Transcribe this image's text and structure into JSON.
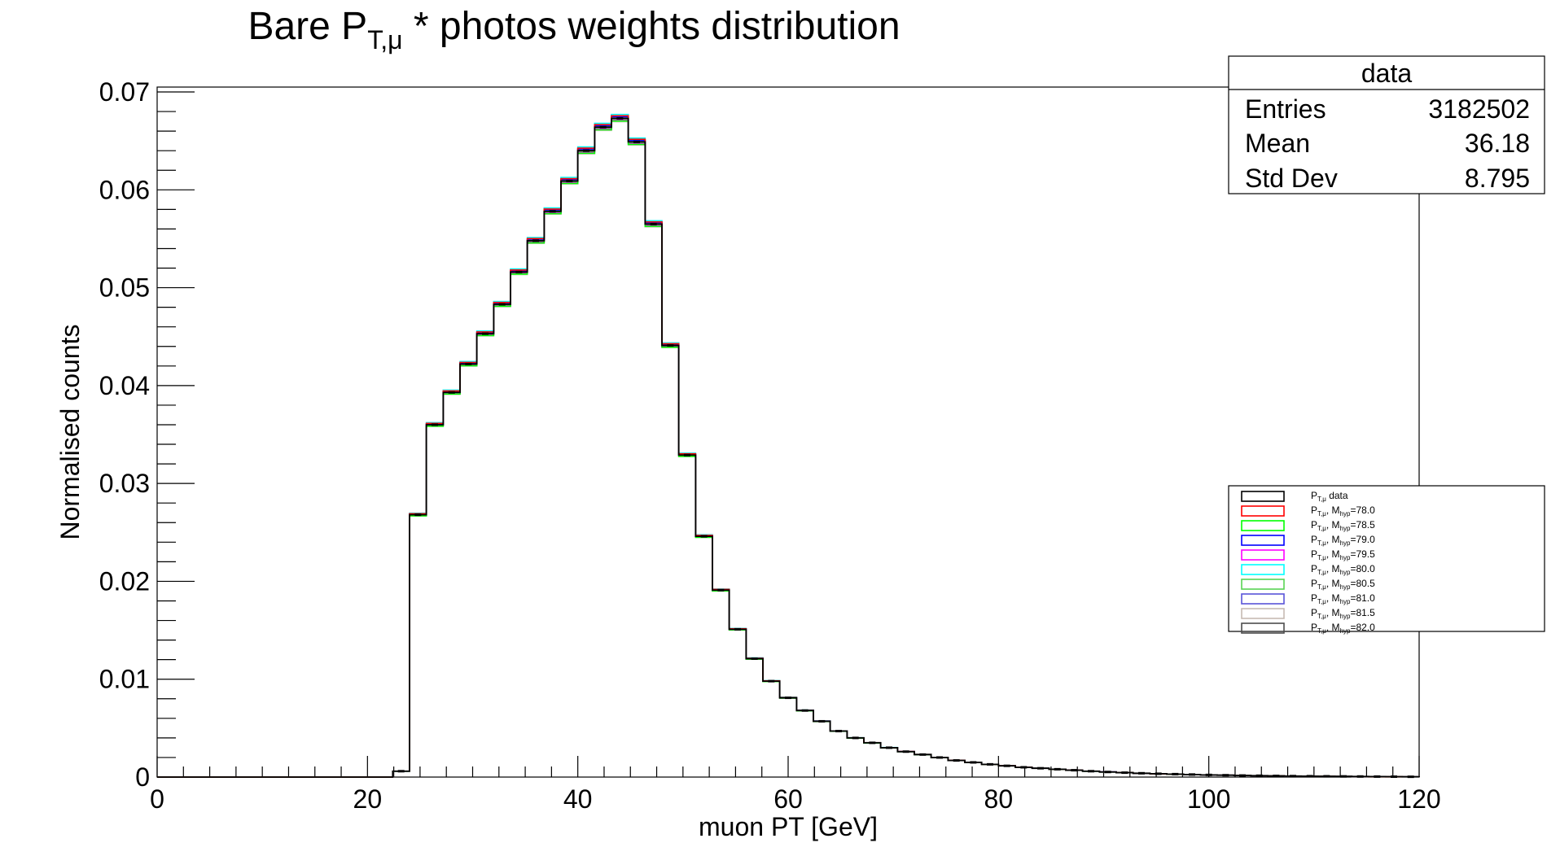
{
  "chart_data": {
    "type": "histogram",
    "title": {
      "prefix": "Bare P",
      "sub": "T,μ",
      "suffix": " * photos weights distribution"
    },
    "xlabel": "muon PT [GeV]",
    "ylabel": "Normalised counts",
    "xlim": [
      0,
      120
    ],
    "ylim": [
      0,
      0.0705
    ],
    "x_ticks": [
      0,
      20,
      40,
      60,
      80,
      100,
      120
    ],
    "x_tick_labels": [
      "0",
      "20",
      "40",
      "60",
      "80",
      "100",
      "120"
    ],
    "y_ticks": [
      0,
      0.01,
      0.02,
      0.03,
      0.04,
      0.05,
      0.06,
      0.07
    ],
    "y_tick_labels": [
      "0",
      "0.01",
      "0.02",
      "0.03",
      "0.04",
      "0.05",
      "0.06",
      "0.07"
    ],
    "bin_width": 1.6,
    "bin_start": 0,
    "values": [
      0,
      0,
      0,
      0,
      0,
      0,
      0,
      0,
      0,
      0,
      0,
      0,
      0,
      0,
      0.0006,
      0.0268,
      0.036,
      0.0393,
      0.0422,
      0.0453,
      0.0483,
      0.0516,
      0.0548,
      0.0578,
      0.0609,
      0.064,
      0.0664,
      0.0673,
      0.0649,
      0.0565,
      0.0441,
      0.0329,
      0.0246,
      0.0191,
      0.0151,
      0.0121,
      0.0098,
      0.0081,
      0.0068,
      0.0057,
      0.0047,
      0.004,
      0.0035,
      0.003,
      0.0026,
      0.0023,
      0.002,
      0.0017,
      0.0015,
      0.0013,
      0.00115,
      0.001,
      0.0009,
      0.0008,
      0.0007,
      0.0006,
      0.00052,
      0.00045,
      0.00039,
      0.00034,
      0.0003,
      0.00026,
      0.00022,
      0.00019,
      0.00016,
      0.00014,
      0.00012,
      0.0001,
      9e-05,
      8e-05,
      7e-05,
      6e-05,
      5e-05,
      4e-05,
      3e-05
    ],
    "stats": {
      "name": "data",
      "rows": [
        {
          "label": "Entries",
          "value": "3182502"
        },
        {
          "label": "Mean",
          "value": "36.18"
        },
        {
          "label": "Std Dev",
          "value": "8.795"
        }
      ]
    },
    "legend": {
      "placement": "right",
      "entries": [
        {
          "base": "P",
          "sub": "T,μ",
          "mid": "",
          "msub": "",
          "suffix": " data",
          "color": "#000000"
        },
        {
          "base": "P",
          "sub": "T,μ",
          "mid": ", M",
          "msub": "hyp",
          "suffix": "=78.0",
          "color": "#ff0000"
        },
        {
          "base": "P",
          "sub": "T,μ",
          "mid": ", M",
          "msub": "hyp",
          "suffix": "=78.5",
          "color": "#00ff00"
        },
        {
          "base": "P",
          "sub": "T,μ",
          "mid": ", M",
          "msub": "hyp",
          "suffix": "=79.0",
          "color": "#0000ff"
        },
        {
          "base": "P",
          "sub": "T,μ",
          "mid": ", M",
          "msub": "hyp",
          "suffix": "=79.5",
          "color": "#ff00ff"
        },
        {
          "base": "P",
          "sub": "T,μ",
          "mid": ", M",
          "msub": "hyp",
          "suffix": "=80.0",
          "color": "#00ffff"
        },
        {
          "base": "P",
          "sub": "T,μ",
          "mid": ", M",
          "msub": "hyp",
          "suffix": "=80.5",
          "color": "#59d354"
        },
        {
          "base": "P",
          "sub": "T,μ",
          "mid": ", M",
          "msub": "hyp",
          "suffix": "=81.0",
          "color": "#5954d8"
        },
        {
          "base": "P",
          "sub": "T,μ",
          "mid": ", M",
          "msub": "hyp",
          "suffix": "=81.5",
          "color": "#c6bab2"
        },
        {
          "base": "P",
          "sub": "T,μ",
          "mid": ", M",
          "msub": "hyp",
          "suffix": "=82.0",
          "color": "#4d4d4d"
        }
      ]
    }
  }
}
